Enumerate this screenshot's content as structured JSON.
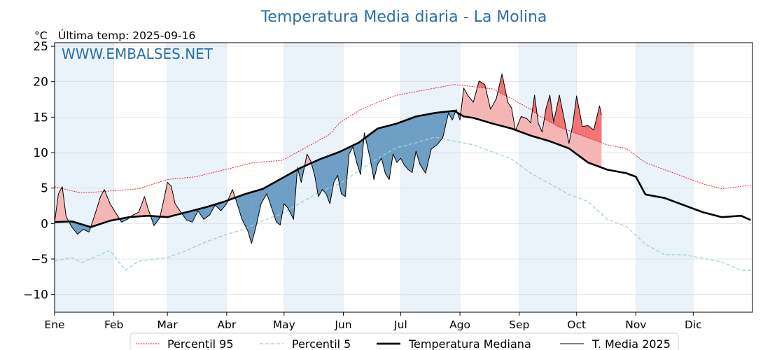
{
  "chart_data": {
    "type": "line",
    "title": "Temperatura Media diaria - La Molina",
    "unit_label": "°C",
    "subtitle": "Última temp: 2025-09-16",
    "watermark": "WWW.EMBALSES.NET",
    "xlabel": "",
    "ylabel": "",
    "ylim": [
      -12.5,
      25.5
    ],
    "yticks": [
      -10,
      -5,
      0,
      5,
      10,
      15,
      20,
      25
    ],
    "ytick_labels": [
      "−10",
      "−5",
      "0",
      "5",
      "10",
      "15",
      "20",
      "25"
    ],
    "months": [
      "Ene",
      "Feb",
      "Mar",
      "Abr",
      "May",
      "Jun",
      "Jul",
      "Ago",
      "Sep",
      "Oct",
      "Nov",
      "Dic"
    ],
    "grid": true,
    "legend_position": "bottom-center",
    "colors": {
      "p95": "#e8141e",
      "p5": "#9fd1dc",
      "median": "#000000",
      "year": "#000000",
      "above_fill": "#f5b5b5",
      "above_p95_fill": "#f07070",
      "below_fill": "#6f9ec4",
      "shade": "#eaf2fa",
      "title": "#2a6fa8"
    },
    "series": [
      {
        "name": "Percentil 95",
        "points": [
          [
            1,
            5.2
          ],
          [
            15,
            4.3
          ],
          [
            30,
            4.6
          ],
          [
            45,
            4.9
          ],
          [
            60,
            6.2
          ],
          [
            75,
            6.6
          ],
          [
            90,
            7.6
          ],
          [
            105,
            8.6
          ],
          [
            120,
            8.9
          ],
          [
            135,
            11.1
          ],
          [
            145,
            12.6
          ],
          [
            150,
            14.2
          ],
          [
            160,
            15.9
          ],
          [
            170,
            17.1
          ],
          [
            180,
            18.1
          ],
          [
            190,
            18.6
          ],
          [
            200,
            19.1
          ],
          [
            210,
            19.6
          ],
          [
            220,
            19.3
          ],
          [
            230,
            19.0
          ],
          [
            240,
            17.6
          ],
          [
            250,
            16.1
          ],
          [
            255,
            15.1
          ],
          [
            265,
            13.6
          ],
          [
            280,
            12.1
          ],
          [
            290,
            11.1
          ],
          [
            300,
            10.6
          ],
          [
            305,
            9.6
          ],
          [
            310,
            8.6
          ],
          [
            320,
            7.6
          ],
          [
            330,
            6.6
          ],
          [
            340,
            5.6
          ],
          [
            350,
            4.9
          ],
          [
            365,
            5.4
          ]
        ]
      },
      {
        "name": "Percentil 5",
        "points": [
          [
            1,
            -5.3
          ],
          [
            10,
            -4.8
          ],
          [
            15,
            -5.5
          ],
          [
            30,
            -3.8
          ],
          [
            38,
            -6.6
          ],
          [
            45,
            -5.3
          ],
          [
            60,
            -4.8
          ],
          [
            70,
            -3.8
          ],
          [
            80,
            -2.6
          ],
          [
            90,
            -1.6
          ],
          [
            100,
            -0.8
          ],
          [
            110,
            0.4
          ],
          [
            120,
            1.4
          ],
          [
            130,
            3.0
          ],
          [
            140,
            4.5
          ],
          [
            150,
            5.6
          ],
          [
            160,
            7.4
          ],
          [
            170,
            9.2
          ],
          [
            180,
            10.7
          ],
          [
            190,
            11.4
          ],
          [
            200,
            12.2
          ],
          [
            210,
            11.6
          ],
          [
            220,
            11.1
          ],
          [
            230,
            10.1
          ],
          [
            240,
            9.1
          ],
          [
            250,
            7.1
          ],
          [
            260,
            5.6
          ],
          [
            270,
            4.1
          ],
          [
            280,
            3.1
          ],
          [
            290,
            0.6
          ],
          [
            300,
            -0.4
          ],
          [
            310,
            -2.9
          ],
          [
            320,
            -4.4
          ],
          [
            330,
            -4.4
          ],
          [
            340,
            -4.9
          ],
          [
            350,
            -5.4
          ],
          [
            360,
            -6.6
          ],
          [
            365,
            -6.6
          ]
        ]
      },
      {
        "name": "Temperatura Mediana",
        "points": [
          [
            1,
            0.2
          ],
          [
            10,
            0.3
          ],
          [
            20,
            -0.5
          ],
          [
            30,
            0.4
          ],
          [
            40,
            0.9
          ],
          [
            50,
            1.1
          ],
          [
            60,
            0.9
          ],
          [
            70,
            1.6
          ],
          [
            80,
            2.3
          ],
          [
            90,
            3.1
          ],
          [
            100,
            4.1
          ],
          [
            110,
            4.9
          ],
          [
            120,
            6.4
          ],
          [
            130,
            7.9
          ],
          [
            140,
            9.1
          ],
          [
            150,
            10.1
          ],
          [
            160,
            11.4
          ],
          [
            170,
            13.4
          ],
          [
            180,
            14.1
          ],
          [
            190,
            15.1
          ],
          [
            200,
            15.6
          ],
          [
            210,
            15.9
          ],
          [
            215,
            15.1
          ],
          [
            220,
            14.9
          ],
          [
            230,
            14.1
          ],
          [
            240,
            13.4
          ],
          [
            250,
            12.4
          ],
          [
            260,
            11.6
          ],
          [
            270,
            10.6
          ],
          [
            280,
            8.6
          ],
          [
            290,
            7.6
          ],
          [
            300,
            7.1
          ],
          [
            305,
            6.6
          ],
          [
            310,
            4.1
          ],
          [
            320,
            3.6
          ],
          [
            330,
            2.6
          ],
          [
            340,
            1.6
          ],
          [
            350,
            0.9
          ],
          [
            360,
            1.1
          ],
          [
            365,
            0.5
          ]
        ]
      },
      {
        "name": "T. Media 2025",
        "points": [
          [
            1,
            0.2
          ],
          [
            3,
            4.2
          ],
          [
            5,
            5.2
          ],
          [
            7,
            1.0
          ],
          [
            10,
            -0.5
          ],
          [
            13,
            -1.5
          ],
          [
            16,
            -0.8
          ],
          [
            19,
            -1.2
          ],
          [
            22,
            1.2
          ],
          [
            25,
            3.8
          ],
          [
            27,
            4.8
          ],
          [
            30,
            2.8
          ],
          [
            33,
            1.5
          ],
          [
            36,
            0.2
          ],
          [
            39,
            0.6
          ],
          [
            42,
            1.2
          ],
          [
            45,
            1.6
          ],
          [
            48,
            3.8
          ],
          [
            50,
            2.0
          ],
          [
            53,
            -0.3
          ],
          [
            56,
            0.8
          ],
          [
            58,
            3.2
          ],
          [
            60,
            5.8
          ],
          [
            62,
            5.3
          ],
          [
            64,
            2.8
          ],
          [
            67,
            1.6
          ],
          [
            70,
            0.5
          ],
          [
            73,
            0.2
          ],
          [
            76,
            1.8
          ],
          [
            79,
            0.6
          ],
          [
            82,
            1.2
          ],
          [
            85,
            2.6
          ],
          [
            88,
            1.8
          ],
          [
            91,
            2.8
          ],
          [
            94,
            4.8
          ],
          [
            96,
            3.2
          ],
          [
            99,
            0.6
          ],
          [
            102,
            -1.0
          ],
          [
            104,
            -2.8
          ],
          [
            106,
            -0.8
          ],
          [
            109,
            2.8
          ],
          [
            112,
            4.2
          ],
          [
            115,
            1.8
          ],
          [
            117,
            0.2
          ],
          [
            119,
            -0.2
          ],
          [
            121,
            2.8
          ],
          [
            123,
            2.2
          ],
          [
            126,
            0.6
          ],
          [
            128,
            7.9
          ],
          [
            130,
            5.8
          ],
          [
            133,
            9.8
          ],
          [
            135,
            8.8
          ],
          [
            137,
            6.8
          ],
          [
            139,
            3.8
          ],
          [
            141,
            4.8
          ],
          [
            143,
            4.2
          ],
          [
            145,
            2.8
          ],
          [
            147,
            5.8
          ],
          [
            149,
            6.8
          ],
          [
            151,
            4.2
          ],
          [
            153,
            3.8
          ],
          [
            155,
            9.8
          ],
          [
            157,
            10.8
          ],
          [
            159,
            8.6
          ],
          [
            161,
            6.9
          ],
          [
            163,
            12.8
          ],
          [
            166,
            9.2
          ],
          [
            168,
            6.2
          ],
          [
            170,
            8.4
          ],
          [
            172,
            9.2
          ],
          [
            174,
            7.0
          ],
          [
            176,
            6.2
          ],
          [
            178,
            9.8
          ],
          [
            180,
            8.6
          ],
          [
            182,
            9.2
          ],
          [
            184,
            8.2
          ],
          [
            186,
            7.6
          ],
          [
            188,
            7.2
          ],
          [
            190,
            10.2
          ],
          [
            192,
            8.4
          ],
          [
            195,
            7.1
          ],
          [
            198,
            10.5
          ],
          [
            201,
            11.1
          ],
          [
            204,
            12.1
          ],
          [
            207,
            15.6
          ],
          [
            209,
            14.6
          ],
          [
            211,
            16.1
          ],
          [
            213,
            14.6
          ],
          [
            215,
            19.1
          ],
          [
            217,
            18.1
          ],
          [
            220,
            17.1
          ],
          [
            223,
            20.1
          ],
          [
            226,
            19.6
          ],
          [
            229,
            16.1
          ],
          [
            232,
            17.6
          ],
          [
            235,
            21.1
          ],
          [
            238,
            17.1
          ],
          [
            240,
            16.3
          ],
          [
            242,
            13.1
          ],
          [
            245,
            15.1
          ],
          [
            248,
            14.8
          ],
          [
            250,
            14.2
          ],
          [
            252,
            18.1
          ],
          [
            254,
            14.1
          ],
          [
            256,
            12.9
          ],
          [
            258,
            16.2
          ],
          [
            260,
            18.1
          ],
          [
            262,
            14.3
          ],
          [
            265,
            18.1
          ],
          [
            268,
            14.1
          ],
          [
            270,
            11.3
          ],
          [
            272,
            13.9
          ],
          [
            274,
            18.0
          ],
          [
            277,
            13.7
          ],
          [
            280,
            13.8
          ],
          [
            283,
            13.2
          ],
          [
            286,
            16.6
          ],
          [
            287,
            15.3
          ]
        ]
      }
    ]
  }
}
